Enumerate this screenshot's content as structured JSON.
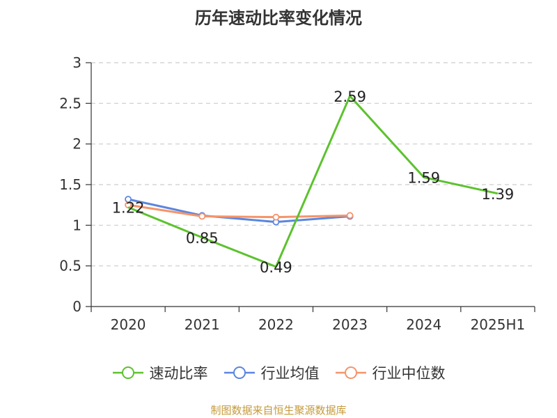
{
  "title": "历年速动比率变化情况",
  "source_note": "制图数据来自恒生聚源数据库",
  "chart_data": {
    "type": "line",
    "title": "历年速动比率变化情况",
    "categories": [
      "2020",
      "2021",
      "2022",
      "2023",
      "2024",
      "2025H1"
    ],
    "y_ticks": [
      "0",
      "0.5",
      "1",
      "1.5",
      "2",
      "2.5",
      "3"
    ],
    "ylim": [
      0,
      3
    ],
    "grid": true,
    "legend_position": "bottom",
    "series": [
      {
        "name": "速动比率",
        "color": "#5cc22e",
        "values": [
          1.22,
          0.85,
          0.49,
          2.59,
          1.59,
          1.39
        ],
        "labels": [
          "1.22",
          "0.85",
          "0.49",
          "2.59",
          "1.59",
          "1.39"
        ],
        "show_labels": true
      },
      {
        "name": "行业均值",
        "color": "#5b86de",
        "values": [
          1.32,
          1.12,
          1.04,
          1.11,
          null,
          null
        ],
        "show_labels": false
      },
      {
        "name": "行业中位数",
        "color": "#f5946a",
        "values": [
          1.25,
          1.11,
          1.1,
          1.12,
          null,
          null
        ],
        "show_labels": false
      }
    ]
  }
}
